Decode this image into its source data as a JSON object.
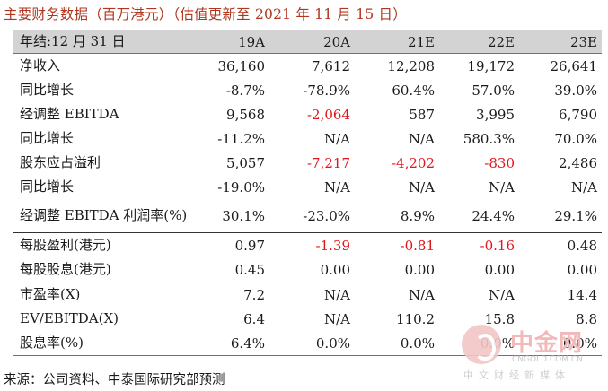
{
  "title": "主要财务数据（百万港元）（估值更新至 2021 年 11 月 15 日）",
  "header": {
    "label": "年结:12 月 31 日",
    "years": [
      "19A",
      "20A",
      "21E",
      "22E",
      "23E"
    ]
  },
  "rows": [
    {
      "label": "净收入",
      "values": [
        "36,160",
        "7,612",
        "12,208",
        "19,172",
        "26,641"
      ],
      "negative": [
        false,
        false,
        false,
        false,
        false
      ]
    },
    {
      "label": "同比增长",
      "values": [
        "-8.7%",
        "-78.9%",
        "60.4%",
        "57.0%",
        "39.0%"
      ],
      "negative": [
        false,
        false,
        false,
        false,
        false
      ]
    },
    {
      "label": "经调整 EBITDA",
      "values": [
        "9,568",
        "-2,064",
        "587",
        "3,995",
        "6,790"
      ],
      "negative": [
        false,
        true,
        false,
        false,
        false
      ]
    },
    {
      "label": "同比增长",
      "values": [
        "-11.2%",
        "N/A",
        "N/A",
        "580.3%",
        "70.0%"
      ],
      "negative": [
        false,
        false,
        false,
        false,
        false
      ]
    },
    {
      "label": "股东应占溢利",
      "values": [
        "5,057",
        "-7,217",
        "-4,202",
        "-830",
        "2,486"
      ],
      "negative": [
        false,
        true,
        true,
        true,
        false
      ]
    },
    {
      "label": "同比增长",
      "values": [
        "-19.0%",
        "N/A",
        "N/A",
        "N/A",
        "N/A"
      ],
      "negative": [
        false,
        false,
        false,
        false,
        false
      ]
    },
    {
      "label": "经调整 EBITDA 利润率(%)",
      "values": [
        "30.1%",
        "-23.0%",
        "8.9%",
        "24.4%",
        "29.1%"
      ],
      "negative": [
        false,
        false,
        false,
        false,
        false
      ]
    },
    {
      "label": "每股盈利(港元)",
      "values": [
        "0.97",
        "-1.39",
        "-0.81",
        "-0.16",
        "0.48"
      ],
      "negative": [
        false,
        true,
        true,
        true,
        false
      ]
    },
    {
      "label": "每股股息(港元)",
      "values": [
        "0.45",
        "0.00",
        "0.00",
        "0.00",
        "0.00"
      ],
      "negative": [
        false,
        false,
        false,
        false,
        false
      ]
    },
    {
      "label": "市盈率(X)",
      "values": [
        "7.2",
        "N/A",
        "N/A",
        "N/A",
        "14.4"
      ],
      "negative": [
        false,
        false,
        false,
        false,
        false
      ]
    },
    {
      "label": "EV/EBITDA(X)",
      "values": [
        "6.4",
        "N/A",
        "110.2",
        "15.8",
        "8.8"
      ],
      "negative": [
        false,
        false,
        false,
        false,
        false
      ]
    },
    {
      "label": "股息率(%)",
      "values": [
        "6.4%",
        "0.0%",
        "0.0%",
        "0.0%",
        "0.0%"
      ],
      "negative": [
        false,
        false,
        false,
        false,
        false
      ]
    }
  ],
  "source": "来源：公司资料、中泰国际研究部预测",
  "watermark": {
    "name": "中金网",
    "domain": "CNGOLD.COM.CN",
    "tagline": "中文财经新媒体"
  },
  "colors": {
    "title": "#b0371f",
    "negative": "#e4141b",
    "header_bg": "#d3d3d3"
  }
}
